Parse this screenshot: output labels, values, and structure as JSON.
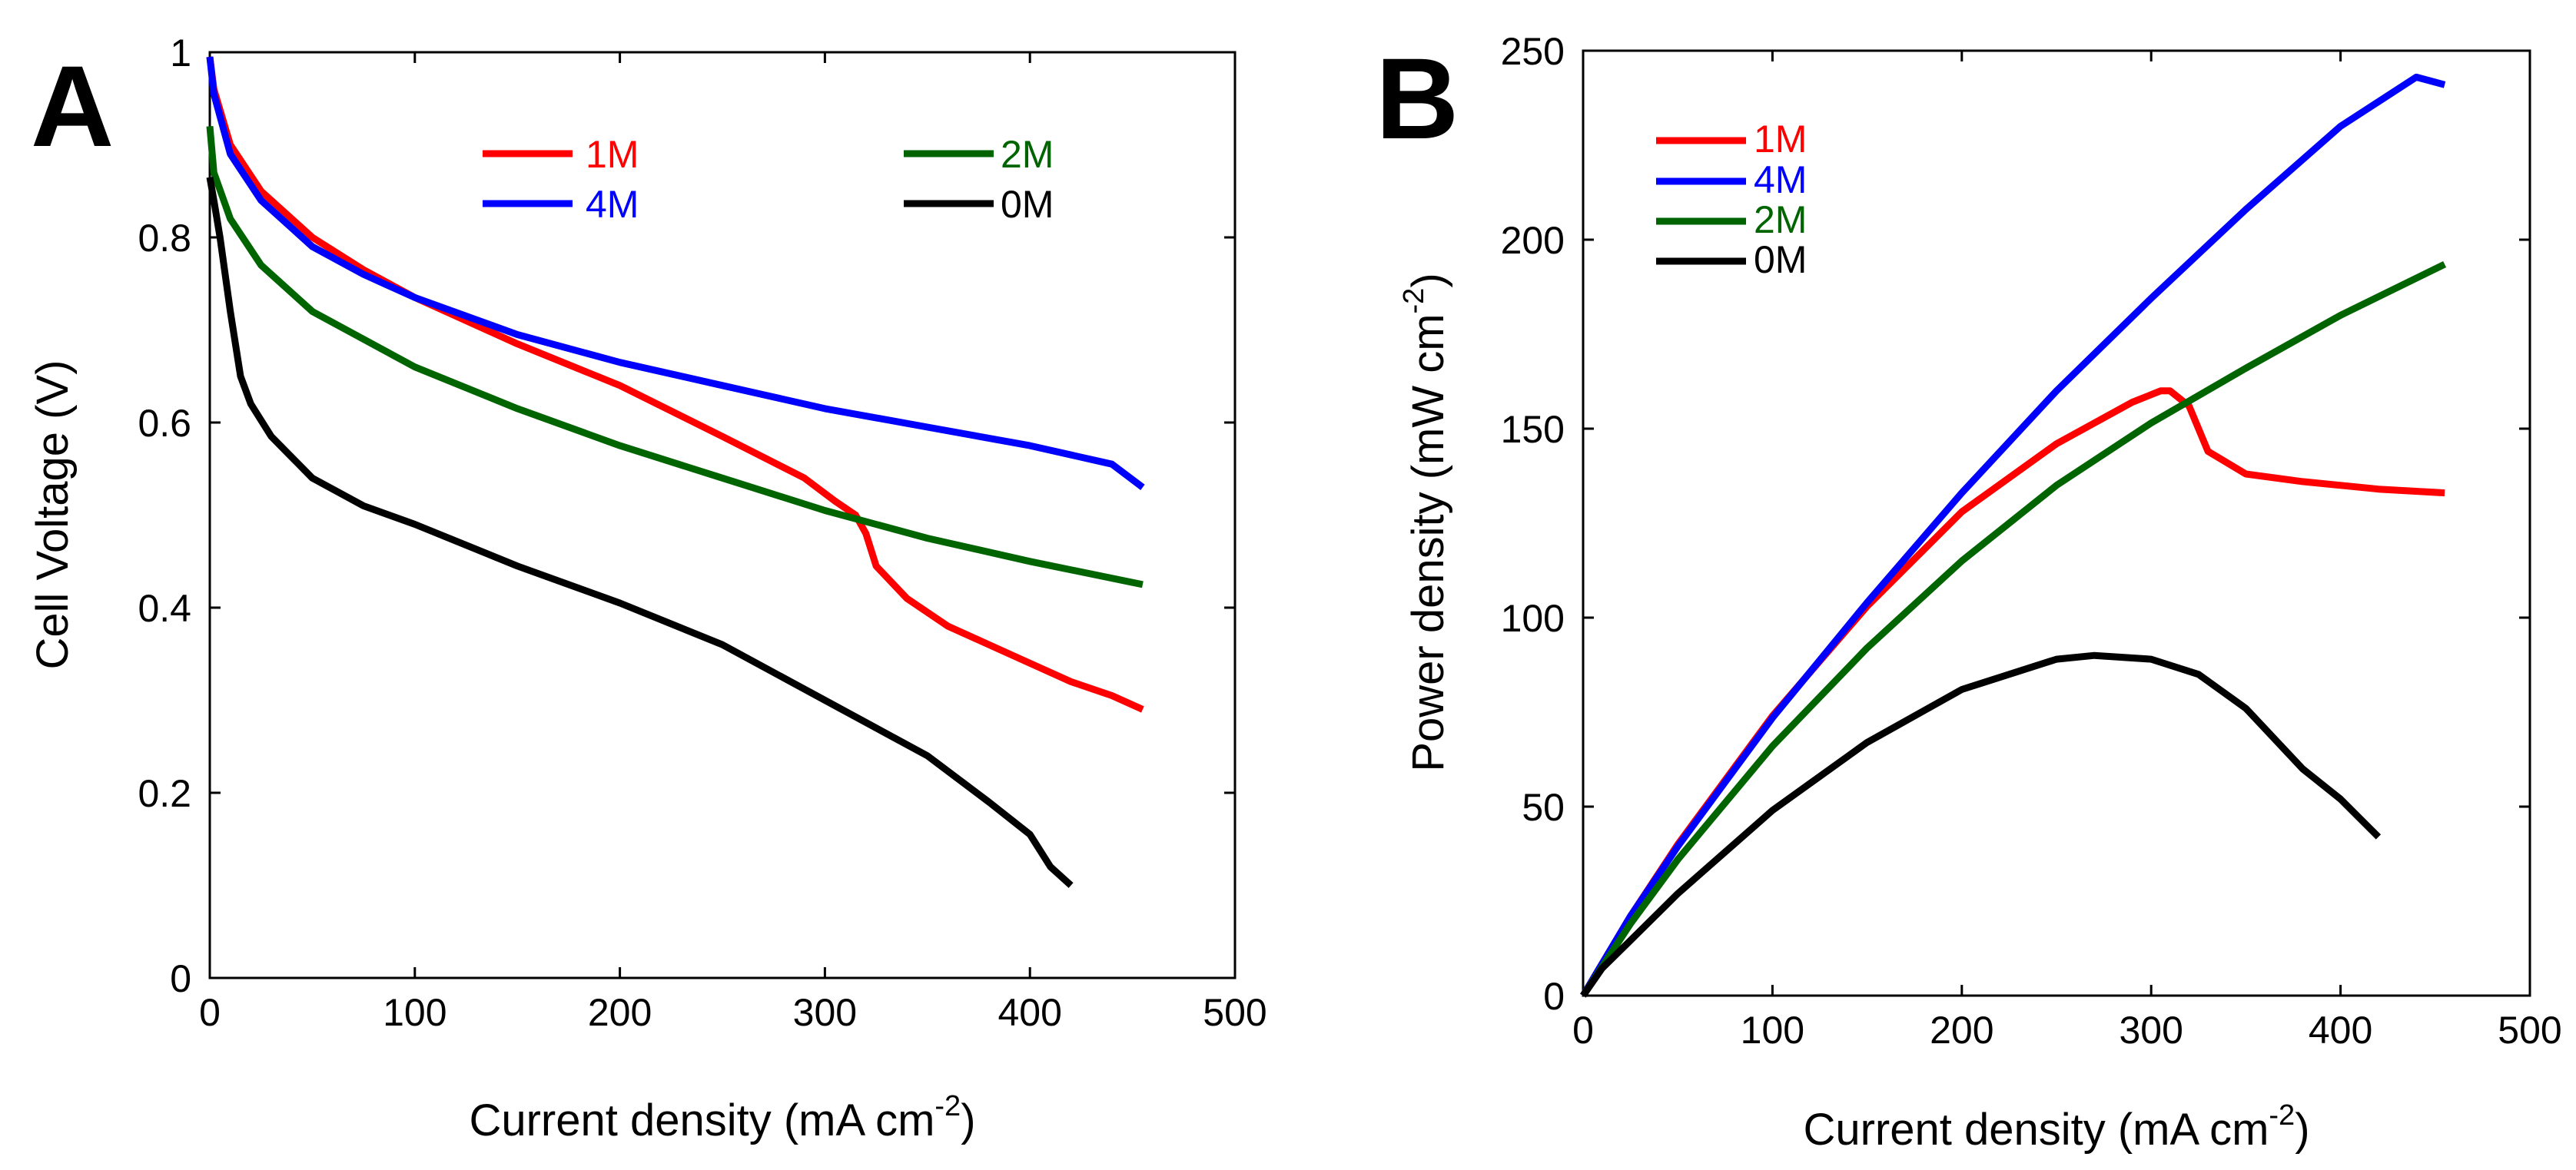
{
  "chart_data": [
    {
      "type": "line",
      "panel_label": "A",
      "xlabel": "Current density (mA cm",
      "xlabel_sup": "-2",
      "xlabel_end": ")",
      "ylabel": "Cell Voltage (V)",
      "xlim": [
        0,
        500
      ],
      "ylim": [
        0,
        1
      ],
      "x_ticks": [
        0,
        100,
        200,
        300,
        400,
        500
      ],
      "y_ticks": [
        0,
        0.2,
        0.4,
        0.6,
        0.8,
        1
      ],
      "x_tick_labels": [
        "0",
        "100",
        "200",
        "300",
        "400",
        "500"
      ],
      "y_tick_labels": [
        "0",
        "0.2",
        "0.4",
        "0.6",
        "0.8",
        "1"
      ],
      "legend_layout": "two columns, upper-right",
      "series": [
        {
          "name": "1M",
          "legend_label": "1M",
          "color": "#ff0000",
          "x": [
            0,
            2,
            10,
            25,
            50,
            75,
            100,
            150,
            200,
            250,
            290,
            305,
            315,
            320,
            325,
            340,
            360,
            380,
            400,
            420,
            440,
            455
          ],
          "y": [
            0.995,
            0.96,
            0.9,
            0.85,
            0.8,
            0.765,
            0.735,
            0.685,
            0.64,
            0.585,
            0.54,
            0.515,
            0.5,
            0.48,
            0.445,
            0.41,
            0.38,
            0.36,
            0.34,
            0.32,
            0.305,
            0.29
          ]
        },
        {
          "name": "4M",
          "legend_label": "4M",
          "color": "#0000ff",
          "x": [
            0,
            2,
            10,
            25,
            50,
            75,
            100,
            150,
            200,
            250,
            300,
            350,
            400,
            440,
            455
          ],
          "y": [
            0.995,
            0.955,
            0.89,
            0.84,
            0.79,
            0.76,
            0.735,
            0.695,
            0.665,
            0.64,
            0.615,
            0.595,
            0.575,
            0.555,
            0.53
          ]
        },
        {
          "name": "2M",
          "legend_label": "2M",
          "color": "#006400",
          "x": [
            0,
            2,
            10,
            25,
            50,
            75,
            100,
            150,
            200,
            250,
            300,
            350,
            400,
            455
          ],
          "y": [
            0.92,
            0.87,
            0.82,
            0.77,
            0.72,
            0.69,
            0.66,
            0.615,
            0.575,
            0.54,
            0.505,
            0.475,
            0.45,
            0.425
          ]
        },
        {
          "name": "0M",
          "legend_label": "0M",
          "color": "#000000",
          "x": [
            0,
            2,
            5,
            10,
            15,
            20,
            30,
            50,
            75,
            100,
            150,
            200,
            250,
            300,
            350,
            380,
            400,
            410,
            420
          ],
          "y": [
            0.865,
            0.84,
            0.8,
            0.72,
            0.65,
            0.62,
            0.585,
            0.54,
            0.51,
            0.49,
            0.445,
            0.405,
            0.36,
            0.3,
            0.24,
            0.19,
            0.155,
            0.12,
            0.1
          ]
        }
      ]
    },
    {
      "type": "line",
      "panel_label": "B",
      "xlabel": "Current density (mA cm",
      "xlabel_sup": "-2",
      "xlabel_end": ")",
      "ylabel": "Power density (mW cm",
      "ylabel_sup": "-2",
      "ylabel_end": ")",
      "xlim": [
        0,
        500
      ],
      "ylim": [
        0,
        250
      ],
      "x_ticks": [
        0,
        100,
        200,
        300,
        400,
        500
      ],
      "y_ticks": [
        0,
        50,
        100,
        150,
        200,
        250
      ],
      "x_tick_labels": [
        "0",
        "100",
        "200",
        "300",
        "400",
        "500"
      ],
      "y_tick_labels": [
        "0",
        "50",
        "100",
        "150",
        "200",
        "250"
      ],
      "legend_layout": "single column, upper-left",
      "series": [
        {
          "name": "1M",
          "legend_label": "1M",
          "color": "#ff0000",
          "x": [
            0,
            25,
            50,
            100,
            150,
            200,
            250,
            290,
            305,
            310,
            320,
            325,
            330,
            350,
            380,
            420,
            455
          ],
          "y": [
            0,
            21,
            40,
            74,
            103,
            128,
            146,
            157,
            160,
            160,
            156,
            150,
            144,
            138,
            136,
            134,
            133
          ]
        },
        {
          "name": "4M",
          "legend_label": "4M",
          "color": "#0000ff",
          "x": [
            0,
            25,
            50,
            100,
            150,
            200,
            250,
            300,
            350,
            400,
            440,
            455
          ],
          "y": [
            0,
            21,
            39.5,
            73.5,
            104,
            133,
            160,
            184.5,
            208,
            230,
            243,
            241
          ]
        },
        {
          "name": "2M",
          "legend_label": "2M",
          "color": "#006400",
          "x": [
            0,
            25,
            50,
            100,
            150,
            200,
            250,
            300,
            350,
            400,
            455
          ],
          "y": [
            0,
            19,
            36,
            66,
            92,
            115,
            135,
            151.5,
            166,
            180,
            193.5
          ]
        },
        {
          "name": "0M",
          "legend_label": "0M",
          "color": "#000000",
          "x": [
            0,
            10,
            25,
            50,
            100,
            150,
            200,
            250,
            270,
            300,
            325,
            350,
            380,
            400,
            410,
            420
          ],
          "y": [
            0,
            7.2,
            14.6,
            27,
            49,
            67,
            81,
            89,
            90,
            89,
            85,
            76,
            60,
            52,
            47,
            42
          ]
        }
      ]
    }
  ]
}
